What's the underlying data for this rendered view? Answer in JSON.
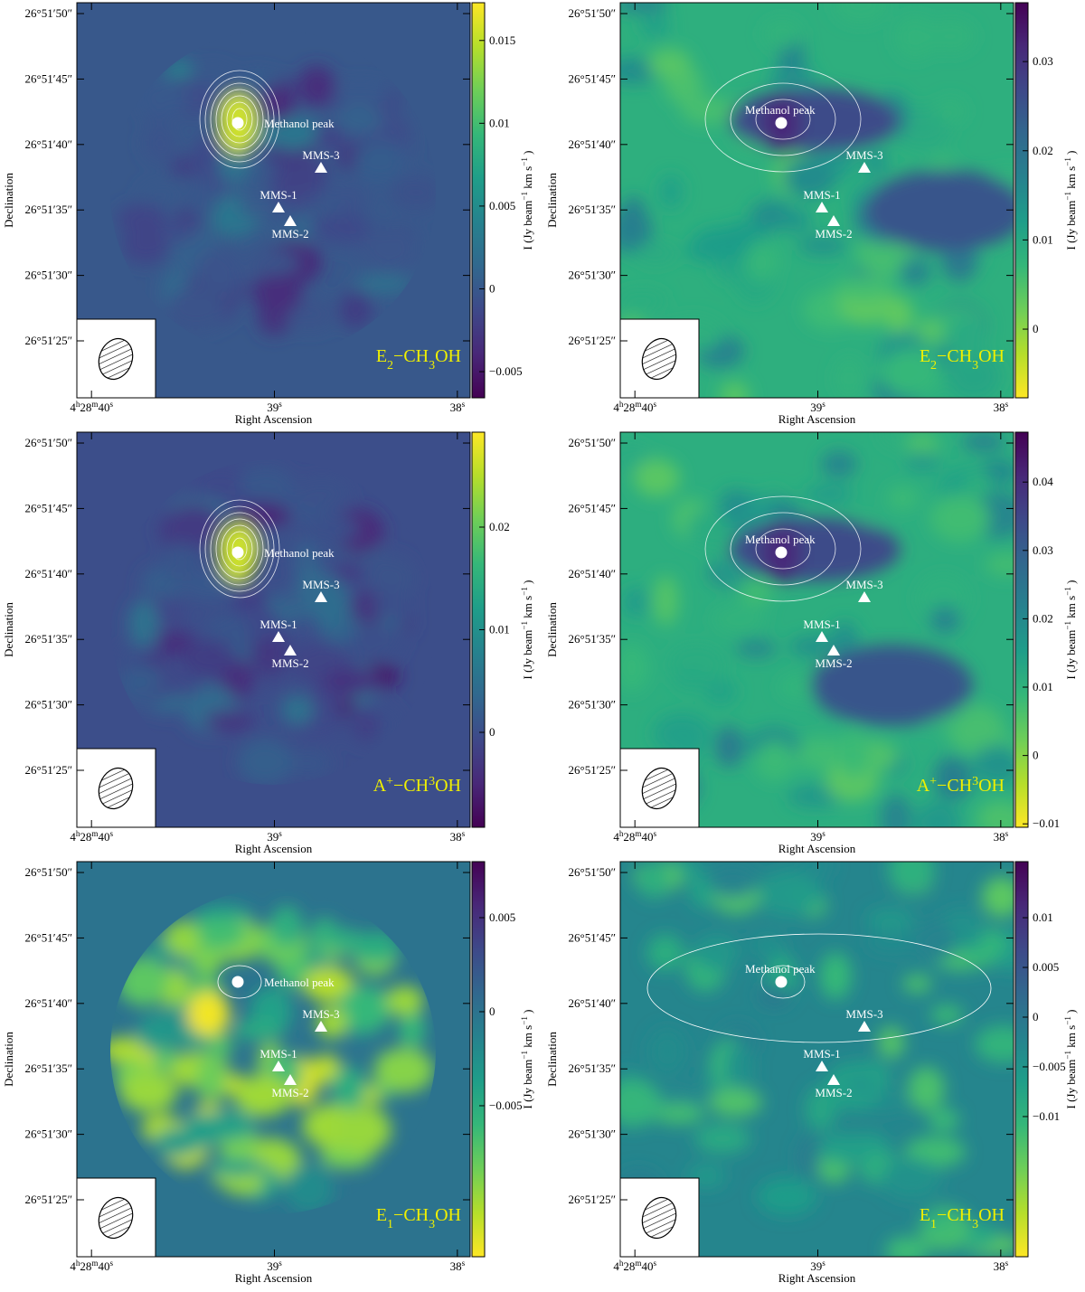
{
  "axes": {
    "ylabel": "Declination",
    "xlabel": "Right Ascension",
    "cbar_label": [
      "I (Jy beam",
      "−1",
      " km s",
      "−1",
      " )"
    ],
    "dec_lim": [
      20.65,
      50.83
    ],
    "dec_ticks": [
      {
        "value": 50,
        "label": "26°51′50″"
      },
      {
        "value": 45,
        "label": "26°51′45″"
      },
      {
        "value": 40,
        "label": "26°51′40″"
      },
      {
        "value": 35,
        "label": "26°51′35″"
      },
      {
        "value": 30,
        "label": "26°51′30″"
      },
      {
        "value": 25,
        "label": "26°51′25″"
      }
    ],
    "ra_lim": [
      40.08,
      37.93
    ],
    "ra_ticks": [
      {
        "value": 40,
        "label": [
          "4",
          "h",
          "28",
          "m",
          "40",
          "s"
        ]
      },
      {
        "value": 39,
        "label": [
          "39",
          "s"
        ]
      },
      {
        "value": 38,
        "label": [
          "38",
          "s"
        ]
      }
    ]
  },
  "sources": {
    "peak": "Methanol peak",
    "mms1": "MMS-1",
    "mms2": "MMS-2",
    "mms3": "MMS-3"
  },
  "panels": [
    {
      "species": [
        "E",
        "2",
        "−CH",
        "3",
        "OH"
      ],
      "script": "sub",
      "cmap_reversed": false,
      "cbar_lim": [
        -0.00658,
        0.01728
      ],
      "cbar_ticks": [
        {
          "value": -0.005,
          "label": "−0.005"
        },
        0,
        0.005,
        0.01,
        0.015
      ]
    },
    {
      "species": [
        "E",
        "2",
        "−CH",
        "3",
        "OH"
      ],
      "script": "sub",
      "cmap_reversed": true,
      "cbar_lim": [
        -0.0077,
        0.0366
      ],
      "cbar_ticks": [
        0,
        0.01,
        0.02,
        0.03
      ]
    },
    {
      "species": [
        "A",
        "+",
        "−CH",
        "3",
        "OH"
      ],
      "script": "super",
      "cmap_reversed": false,
      "cbar_lim": [
        -0.00925,
        0.02925
      ],
      "cbar_ticks": [
        0,
        0.01,
        0.02
      ]
    },
    {
      "species": [
        "A",
        "+",
        "−CH",
        "3",
        "OH"
      ],
      "script": "super",
      "cmap_reversed": true,
      "cbar_lim": [
        -0.0105,
        0.0473
      ],
      "cbar_ticks": [
        {
          "value": -0.01,
          "label": "−0.01"
        },
        0,
        0.01,
        0.02,
        0.03,
        0.04
      ]
    },
    {
      "species": [
        "E",
        "1",
        "−CH",
        "3",
        "OH"
      ],
      "script": "sub",
      "cmap_reversed": true,
      "cbar_lim": [
        -0.01303,
        0.00798
      ],
      "cbar_ticks": [
        {
          "value": -0.005,
          "label": "−0.005"
        },
        0,
        0.005
      ]
    },
    {
      "species": [
        "E",
        "1",
        "−CH",
        "3",
        "OH"
      ],
      "script": "sub",
      "cmap_reversed": true,
      "cbar_lim": [
        -0.0241,
        0.01564
      ],
      "cbar_ticks": [
        {
          "value": -0.01,
          "label": "−0.01"
        },
        {
          "value": -0.005,
          "label": "−0.005"
        },
        0,
        0.005,
        0.01
      ]
    }
  ]
}
